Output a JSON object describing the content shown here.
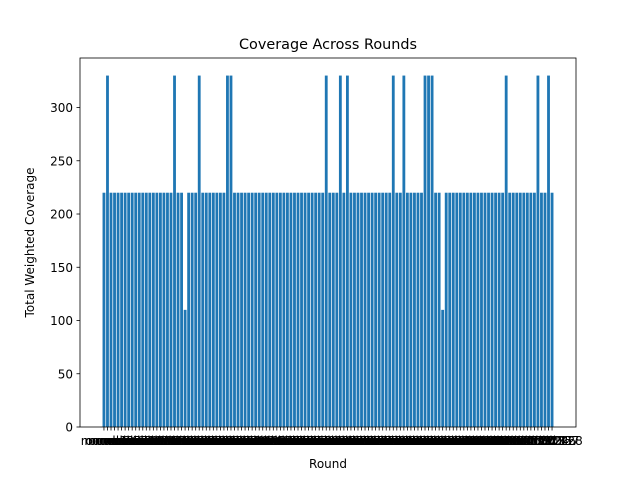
{
  "chart_data": {
    "type": "bar",
    "title": "Coverage Across Rounds",
    "xlabel": "Round",
    "ylabel": "Total Weighted Coverage",
    "color": "#1f77b4",
    "categories": [
      "round 1",
      "round 2",
      "round 3",
      "round 4",
      "round 5",
      "round 6",
      "round 7",
      "round 8",
      "round 9",
      "round 10",
      "round 11",
      "round 12",
      "round 13",
      "round 14",
      "round 15",
      "round 16",
      "round 17",
      "round 18",
      "round 19",
      "round 20",
      "round 21",
      "round 22",
      "round 23",
      "round 24",
      "round 25",
      "round 26",
      "round 27",
      "round 28",
      "round 29",
      "round 30",
      "round 31",
      "round 32",
      "round 33",
      "round 34",
      "round 35",
      "round 36",
      "round 37",
      "round 38",
      "round 39",
      "round 40",
      "round 41",
      "round 42",
      "round 43",
      "round 44",
      "round 45",
      "round 46",
      "round 47",
      "round 48",
      "round 49",
      "round 50",
      "round 51",
      "round 52",
      "round 53",
      "round 54",
      "round 55",
      "round 56",
      "round 57",
      "round 58",
      "round 59",
      "round 60",
      "round 61",
      "round 62",
      "round 63",
      "round 64",
      "round 65",
      "round 66",
      "round 67",
      "round 68",
      "round 69",
      "round 70",
      "round 71",
      "round 72",
      "round 73",
      "round 74",
      "round 75",
      "round 76",
      "round 77",
      "round 78",
      "round 79",
      "round 80",
      "round 81",
      "round 82",
      "round 83",
      "round 84",
      "round 85",
      "round 86",
      "round 87",
      "round 88",
      "round 89",
      "round 90",
      "round 91",
      "round 92",
      "round 93",
      "round 94",
      "round 95",
      "round 96",
      "round 97",
      "round 98",
      "round 99",
      "round 100",
      "round 101",
      "round 102",
      "round 103",
      "round 104",
      "round 105",
      "round 106",
      "round 107",
      "round 108",
      "round 109",
      "round 110",
      "round 111",
      "round 112",
      "round 113",
      "round 114",
      "round 115",
      "round 116",
      "round 117",
      "round 118",
      "round 119",
      "round 120",
      "round 121",
      "round 122",
      "round 123",
      "round 124",
      "round 125",
      "round 126",
      "round 127",
      "round 128"
    ],
    "values": [
      220,
      330,
      220,
      220,
      220,
      220,
      220,
      220,
      220,
      220,
      220,
      220,
      220,
      220,
      220,
      220,
      220,
      220,
      220,
      220,
      330,
      220,
      220,
      110,
      220,
      220,
      220,
      330,
      220,
      220,
      220,
      220,
      220,
      220,
      220,
      330,
      330,
      220,
      220,
      220,
      220,
      220,
      220,
      220,
      220,
      220,
      220,
      220,
      220,
      220,
      220,
      220,
      220,
      220,
      220,
      220,
      220,
      220,
      220,
      220,
      220,
      220,
      220,
      330,
      220,
      220,
      220,
      330,
      220,
      330,
      220,
      220,
      220,
      220,
      220,
      220,
      220,
      220,
      220,
      220,
      220,
      220,
      330,
      220,
      220,
      330,
      220,
      220,
      220,
      220,
      220,
      330,
      330,
      330,
      220,
      220,
      110,
      220,
      220,
      220,
      220,
      220,
      220,
      220,
      220,
      220,
      220,
      220,
      220,
      220,
      220,
      220,
      220,
      220,
      330,
      220,
      220,
      220,
      220,
      220,
      220,
      220,
      220,
      330,
      220,
      220,
      330,
      220
    ],
    "ylim": [
      0,
      346.5
    ],
    "yticks": [
      0,
      50,
      100,
      150,
      200,
      250,
      300
    ]
  }
}
